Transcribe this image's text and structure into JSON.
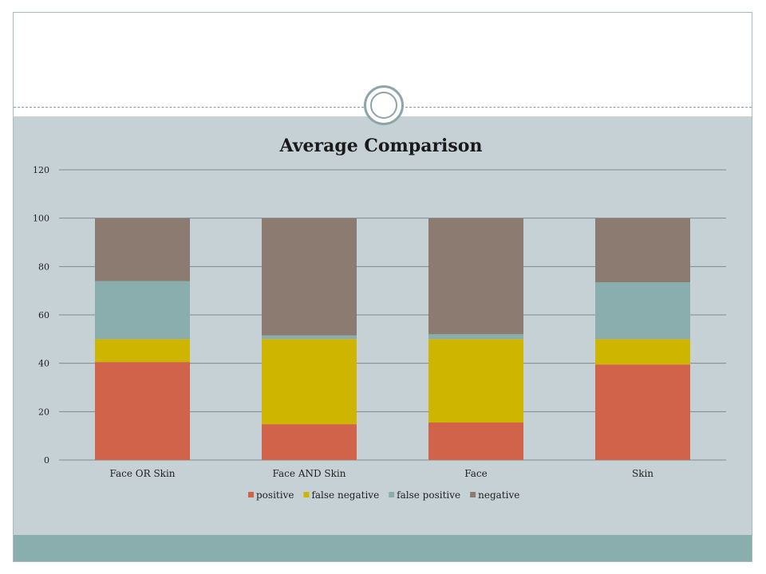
{
  "chart_data": {
    "type": "bar",
    "stacked": true,
    "title": "Average Comparison",
    "categories": [
      "Face OR Skin",
      "Face AND Skin",
      "Face",
      "Skin"
    ],
    "series": [
      {
        "name": "positive",
        "color": "#d1634a",
        "values": [
          40.5,
          14.8,
          15.5,
          39.5
        ]
      },
      {
        "name": "false negative",
        "color": "#cdb500",
        "values": [
          9.5,
          35.2,
          34.5,
          10.5
        ]
      },
      {
        "name": "false positive",
        "color": "#8aadad",
        "values": [
          24,
          1.5,
          2,
          23.5
        ]
      },
      {
        "name": "negative",
        "color": "#8b7b70",
        "values": [
          26,
          48.5,
          48,
          26.5
        ]
      }
    ],
    "ylim": [
      0,
      120
    ],
    "yticks": [
      0,
      20,
      40,
      60,
      80,
      100,
      120
    ],
    "grid": true,
    "legend": "bottom"
  }
}
